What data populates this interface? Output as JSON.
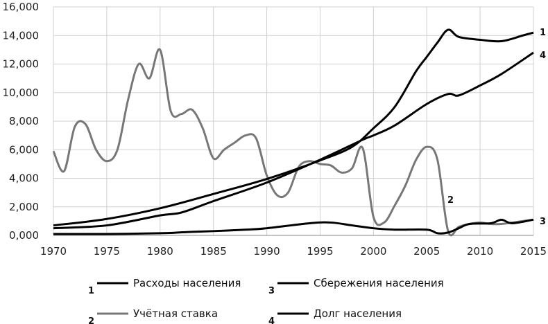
{
  "chart_data": {
    "type": "line",
    "title": "",
    "xlabel": "",
    "ylabel": "",
    "xlim": [
      1970,
      2015
    ],
    "ylim": [
      0,
      16000
    ],
    "grid": true,
    "x_ticks": [
      "1970",
      "1975",
      "1980",
      "1985",
      "1990",
      "1995",
      "2000",
      "2005",
      "2010",
      "2015"
    ],
    "y_ticks": [
      "0,000",
      "2,000",
      "4,000",
      "6,000",
      "8,000",
      "10,000",
      "12,000",
      "14,000",
      "16,000"
    ],
    "legend_placement": "bottom",
    "series": [
      {
        "name": "Расходы населения",
        "label": "1",
        "color": "#000000",
        "points": [
          [
            1970,
            700
          ],
          [
            1975,
            1150
          ],
          [
            1980,
            1900
          ],
          [
            1985,
            2900
          ],
          [
            1990,
            3950
          ],
          [
            1995,
            5250
          ],
          [
            1998,
            6200
          ],
          [
            2000,
            7500
          ],
          [
            2002,
            9000
          ],
          [
            2004,
            11500
          ],
          [
            2005,
            12500
          ],
          [
            2006,
            13500
          ],
          [
            2007,
            14400
          ],
          [
            2008,
            13900
          ],
          [
            2010,
            13700
          ],
          [
            2012,
            13600
          ],
          [
            2014,
            14000
          ],
          [
            2015,
            14200
          ]
        ]
      },
      {
        "name": "Учётная ставка",
        "label": "2",
        "color": "#777777",
        "points": [
          [
            1970,
            5900
          ],
          [
            1971,
            4500
          ],
          [
            1972,
            7600
          ],
          [
            1973,
            7800
          ],
          [
            1974,
            6000
          ],
          [
            1975,
            5200
          ],
          [
            1976,
            6000
          ],
          [
            1977,
            9500
          ],
          [
            1978,
            12000
          ],
          [
            1979,
            11000
          ],
          [
            1980,
            13000
          ],
          [
            1981,
            8700
          ],
          [
            1982,
            8500
          ],
          [
            1983,
            8800
          ],
          [
            1984,
            7500
          ],
          [
            1985,
            5400
          ],
          [
            1986,
            6000
          ],
          [
            1987,
            6500
          ],
          [
            1988,
            7000
          ],
          [
            1989,
            6800
          ],
          [
            1990,
            4200
          ],
          [
            1991,
            2800
          ],
          [
            1992,
            3000
          ],
          [
            1993,
            4800
          ],
          [
            1994,
            5200
          ],
          [
            1995,
            5000
          ],
          [
            1996,
            4900
          ],
          [
            1997,
            4400
          ],
          [
            1998,
            4700
          ],
          [
            1999,
            6100
          ],
          [
            2000,
            1300
          ],
          [
            2001,
            900
          ],
          [
            2002,
            2100
          ],
          [
            2003,
            3500
          ],
          [
            2004,
            5300
          ],
          [
            2005,
            6200
          ],
          [
            2006,
            5300
          ],
          [
            2007,
            300
          ],
          [
            2008,
            600
          ],
          [
            2009,
            800
          ],
          [
            2010,
            900
          ],
          [
            2011,
            800
          ],
          [
            2012,
            800
          ],
          [
            2013,
            900
          ],
          [
            2014,
            1000
          ],
          [
            2015,
            1100
          ]
        ]
      },
      {
        "name": "Сбережения населения",
        "label": "3",
        "color": "#000000",
        "points": [
          [
            1970,
            100
          ],
          [
            1975,
            100
          ],
          [
            1980,
            150
          ],
          [
            1983,
            250
          ],
          [
            1985,
            300
          ],
          [
            1988,
            400
          ],
          [
            1990,
            500
          ],
          [
            1994,
            850
          ],
          [
            1996,
            900
          ],
          [
            1998,
            700
          ],
          [
            2000,
            500
          ],
          [
            2002,
            400
          ],
          [
            2005,
            400
          ],
          [
            2006,
            150
          ],
          [
            2007,
            200
          ],
          [
            2008,
            500
          ],
          [
            2009,
            800
          ],
          [
            2011,
            850
          ],
          [
            2012,
            1100
          ],
          [
            2013,
            850
          ],
          [
            2015,
            1100
          ]
        ]
      },
      {
        "name": "Долг населения",
        "label": "4",
        "color": "#000000",
        "points": [
          [
            1970,
            500
          ],
          [
            1975,
            700
          ],
          [
            1980,
            1400
          ],
          [
            1982,
            1600
          ],
          [
            1985,
            2400
          ],
          [
            1990,
            3700
          ],
          [
            1995,
            5300
          ],
          [
            1999,
            6700
          ],
          [
            2000,
            7000
          ],
          [
            2002,
            7700
          ],
          [
            2005,
            9200
          ],
          [
            2007,
            9900
          ],
          [
            2008,
            9800
          ],
          [
            2010,
            10500
          ],
          [
            2012,
            11300
          ],
          [
            2015,
            12800
          ]
        ]
      }
    ]
  }
}
